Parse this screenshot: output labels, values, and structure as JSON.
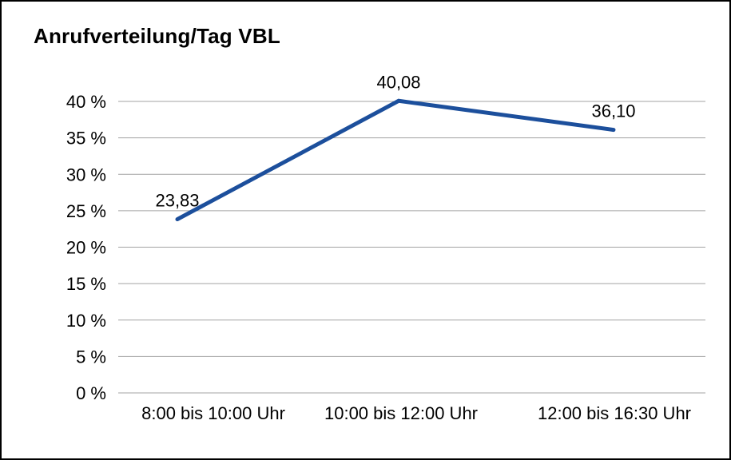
{
  "chart_data": {
    "type": "line",
    "title": "Anrufverteilung/Tag VBL",
    "categories": [
      "8:00 bis 10:00 Uhr",
      "10:00 bis 12:00 Uhr",
      "12:00 bis 16:30 Uhr"
    ],
    "values": [
      23.83,
      40.08,
      36.1
    ],
    "value_labels": [
      "23,83",
      "40,08",
      "36,10"
    ],
    "xlabel": "",
    "ylabel": "",
    "ylim": [
      0,
      40
    ],
    "ytick_step": 5,
    "ytick_suffix": " %",
    "grid": true,
    "legend": false
  },
  "colors": {
    "line": "#1c4f9c",
    "grid": "#a3a3a3",
    "text": "#000000",
    "background": "#ffffff",
    "border": "#000000"
  },
  "style": {
    "line_width": 5
  }
}
